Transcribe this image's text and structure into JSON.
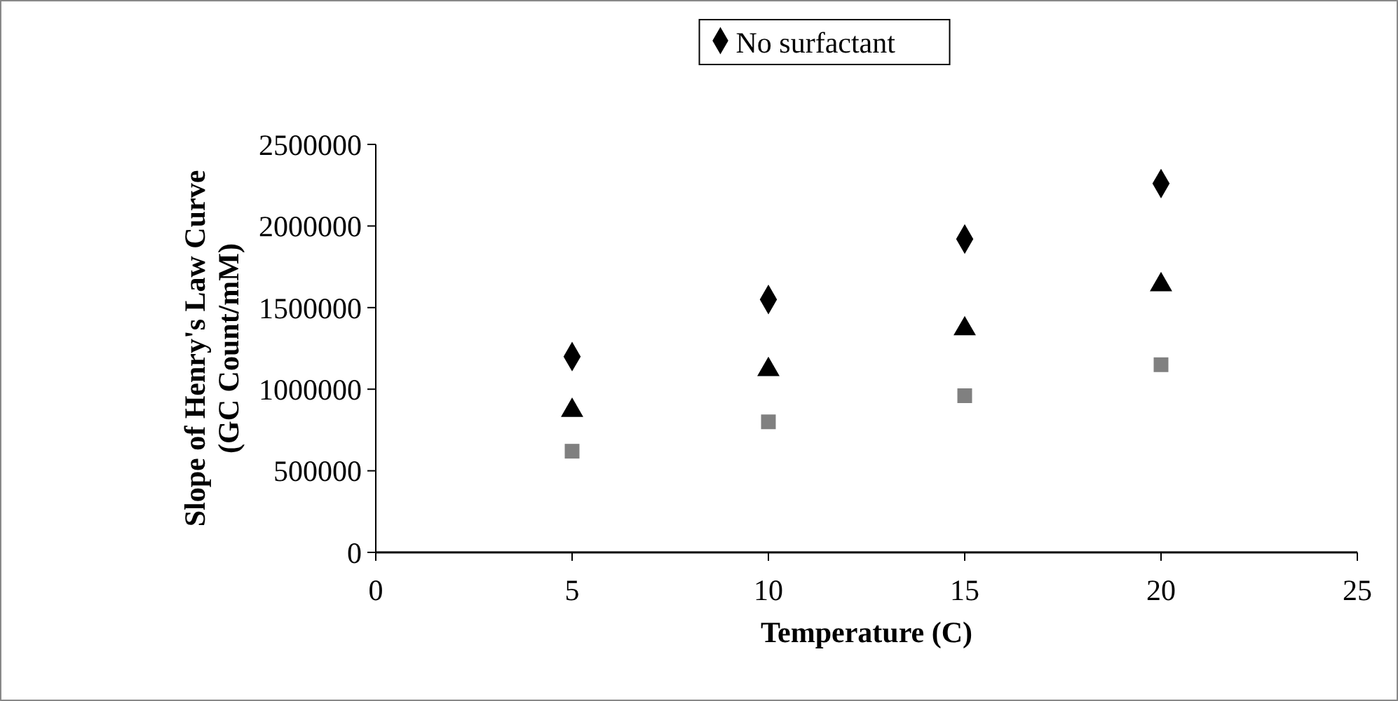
{
  "chart_data": {
    "type": "scatter",
    "xlabel": "Temperature (C)",
    "ylabel": "Slope of Henry's Law Curve (GC Count/mM)",
    "x": [
      5,
      10,
      15,
      20
    ],
    "series": [
      {
        "name": "No surfactant",
        "color": "#000000",
        "marker": "diamond",
        "values": [
          1200000,
          1550000,
          1920000,
          2260000
        ]
      },
      {
        "color": "#808080",
        "marker": "square",
        "values": [
          620000,
          800000,
          960000,
          1150000
        ]
      },
      {
        "color": "#000000",
        "marker": "triangle",
        "values": [
          870000,
          1120000,
          1370000,
          1640000
        ]
      }
    ],
    "xlim": [
      0,
      25
    ],
    "xticks": [
      0,
      5,
      10,
      15,
      20,
      25
    ],
    "ylim": [
      0,
      2500000
    ],
    "yticks": [
      0,
      500000,
      1000000,
      1500000,
      2000000,
      2500000
    ],
    "grid": false,
    "legend": "top"
  }
}
